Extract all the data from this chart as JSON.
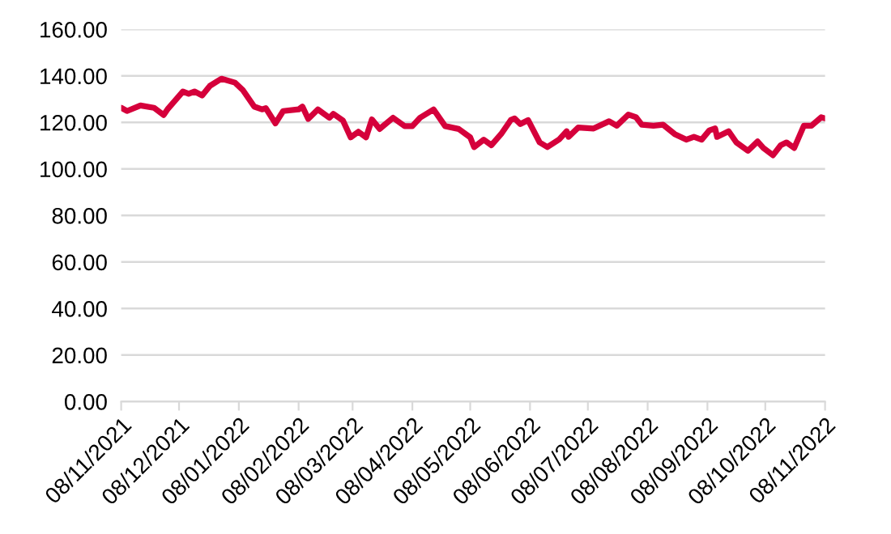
{
  "chart_data": {
    "type": "line",
    "x": [
      "2021-11-08",
      "2021-11-11",
      "2021-11-18",
      "2021-11-25",
      "2021-11-30",
      "2021-12-02",
      "2021-12-10",
      "2021-12-13",
      "2021-12-16",
      "2021-12-20",
      "2021-12-24",
      "2021-12-30",
      "2022-01-06",
      "2022-01-10",
      "2022-01-16",
      "2022-01-20",
      "2022-01-22",
      "2022-01-27",
      "2022-01-31",
      "2022-02-08",
      "2022-02-10",
      "2022-02-13",
      "2022-02-18",
      "2022-02-24",
      "2022-02-26",
      "2022-03-03",
      "2022-03-07",
      "2022-03-11",
      "2022-03-15",
      "2022-03-18",
      "2022-03-22",
      "2022-03-29",
      "2022-04-04",
      "2022-04-08",
      "2022-04-12",
      "2022-04-19",
      "2022-04-25",
      "2022-05-02",
      "2022-05-08",
      "2022-05-10",
      "2022-05-15",
      "2022-05-19",
      "2022-05-24",
      "2022-05-29",
      "2022-05-31",
      "2022-06-03",
      "2022-06-07",
      "2022-06-13",
      "2022-06-17",
      "2022-06-23",
      "2022-06-27",
      "2022-06-28",
      "2022-07-03",
      "2022-07-11",
      "2022-07-19",
      "2022-07-23",
      "2022-07-29",
      "2022-08-02",
      "2022-08-05",
      "2022-08-11",
      "2022-08-16",
      "2022-08-22",
      "2022-08-28",
      "2022-09-01",
      "2022-09-05",
      "2022-09-09",
      "2022-09-12",
      "2022-09-13",
      "2022-09-19",
      "2022-09-23",
      "2022-09-29",
      "2022-10-04",
      "2022-10-07",
      "2022-10-12",
      "2022-10-16",
      "2022-10-19",
      "2022-10-23",
      "2022-10-28",
      "2022-11-01",
      "2022-11-06",
      "2022-11-08"
    ],
    "series": [
      {
        "color": "#d5003b",
        "values": [
          126.3,
          124.9,
          127.3,
          126.3,
          123.2,
          125.6,
          133.3,
          132.3,
          133.3,
          131.6,
          135.7,
          138.8,
          137.1,
          134,
          126.8,
          125.6,
          126.1,
          119.6,
          124.9,
          125.6,
          126.8,
          121.5,
          125.6,
          122,
          123.7,
          120.8,
          113.6,
          116,
          113.6,
          121.3,
          117.2,
          122,
          118.4,
          118.4,
          122,
          125.6,
          118.4,
          117.2,
          113.6,
          109.4,
          112.6,
          110.2,
          115,
          121,
          121.7,
          119.3,
          121,
          111.4,
          109.4,
          112.6,
          116.2,
          113.8,
          117.8,
          117.4,
          120.5,
          118.6,
          123.4,
          122.2,
          119,
          118.6,
          119,
          115,
          112.6,
          113.8,
          112.6,
          116.6,
          117.4,
          113.8,
          116.2,
          111.4,
          107.8,
          111.8,
          109,
          105.9,
          110.2,
          111.4,
          109,
          118.6,
          118.6,
          122.2,
          121.7
        ]
      }
    ],
    "xlim": [
      "2021-11-08",
      "2022-11-08"
    ],
    "xticks": [
      {
        "value": "2021-11-08",
        "label": "08/11/2021"
      },
      {
        "value": "2021-12-08",
        "label": "08/12/2021"
      },
      {
        "value": "2022-01-08",
        "label": "08/01/2022"
      },
      {
        "value": "2022-02-08",
        "label": "08/02/2022"
      },
      {
        "value": "2022-03-08",
        "label": "08/03/2022"
      },
      {
        "value": "2022-04-08",
        "label": "08/04/2022"
      },
      {
        "value": "2022-05-08",
        "label": "08/05/2022"
      },
      {
        "value": "2022-06-08",
        "label": "08/06/2022"
      },
      {
        "value": "2022-07-08",
        "label": "08/07/2022"
      },
      {
        "value": "2022-08-08",
        "label": "08/08/2022"
      },
      {
        "value": "2022-09-08",
        "label": "08/09/2022"
      },
      {
        "value": "2022-10-08",
        "label": "08/10/2022"
      },
      {
        "value": "2022-11-08",
        "label": "08/11/2022"
      }
    ],
    "ylim": [
      0,
      160
    ],
    "yticks": [
      {
        "value": 0,
        "label": "0.00"
      },
      {
        "value": 20,
        "label": "20.00"
      },
      {
        "value": 40,
        "label": "40.00"
      },
      {
        "value": 60,
        "label": "60.00"
      },
      {
        "value": 80,
        "label": "80.00"
      },
      {
        "value": 100,
        "label": "100.00"
      },
      {
        "value": 120,
        "label": "120.00"
      },
      {
        "value": 140,
        "label": "140.00"
      },
      {
        "value": 160,
        "label": "160.00"
      }
    ],
    "grid": "y",
    "marker": "none",
    "line_style": "solid"
  }
}
